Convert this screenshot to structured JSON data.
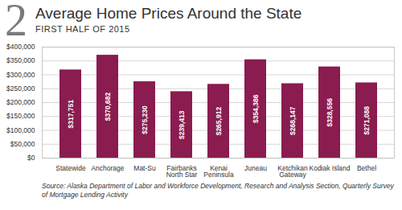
{
  "chart_data": {
    "type": "bar",
    "figure_label": "2",
    "title": "Average Home Prices Around the State",
    "subtitle": "FIRST HALF OF 2015",
    "categories": [
      "Statewide",
      "Anchorage",
      "Mat-Su",
      "Fairbanks North Star",
      "Kenai Peninsula",
      "Juneau",
      "Ketchikan Gateway",
      "Kodiak Island",
      "Bethel"
    ],
    "values": [
      317751,
      370682,
      275230,
      239413,
      265912,
      354386,
      268147,
      328556,
      271088
    ],
    "value_labels": [
      "$317,751",
      "$370,682",
      "$275,230",
      "$239,413",
      "$265,912",
      "$354,386",
      "$268,147",
      "$328,556",
      "$271,088"
    ],
    "color": "#8a1c4f",
    "ylim": [
      0,
      400000
    ],
    "yticks": [
      {
        "value": 0,
        "label": "$0"
      },
      {
        "value": 50000,
        "label": "$50,000"
      },
      {
        "value": 100000,
        "label": "$100,000"
      },
      {
        "value": 150000,
        "label": "$150,000"
      },
      {
        "value": 200000,
        "label": "$200,000"
      },
      {
        "value": 250000,
        "label": "$250,000"
      },
      {
        "value": 300000,
        "label": "$300,000"
      },
      {
        "value": 350000,
        "label": "$350,000"
      },
      {
        "value": 400000,
        "label": "$400,000"
      }
    ],
    "grid": true,
    "data_labels": true,
    "caption": "Source: Alaska Department of Labor and Workforce Development, Research and Analysis Section, Quarterly Survey of Mortgage Lending Activity"
  }
}
